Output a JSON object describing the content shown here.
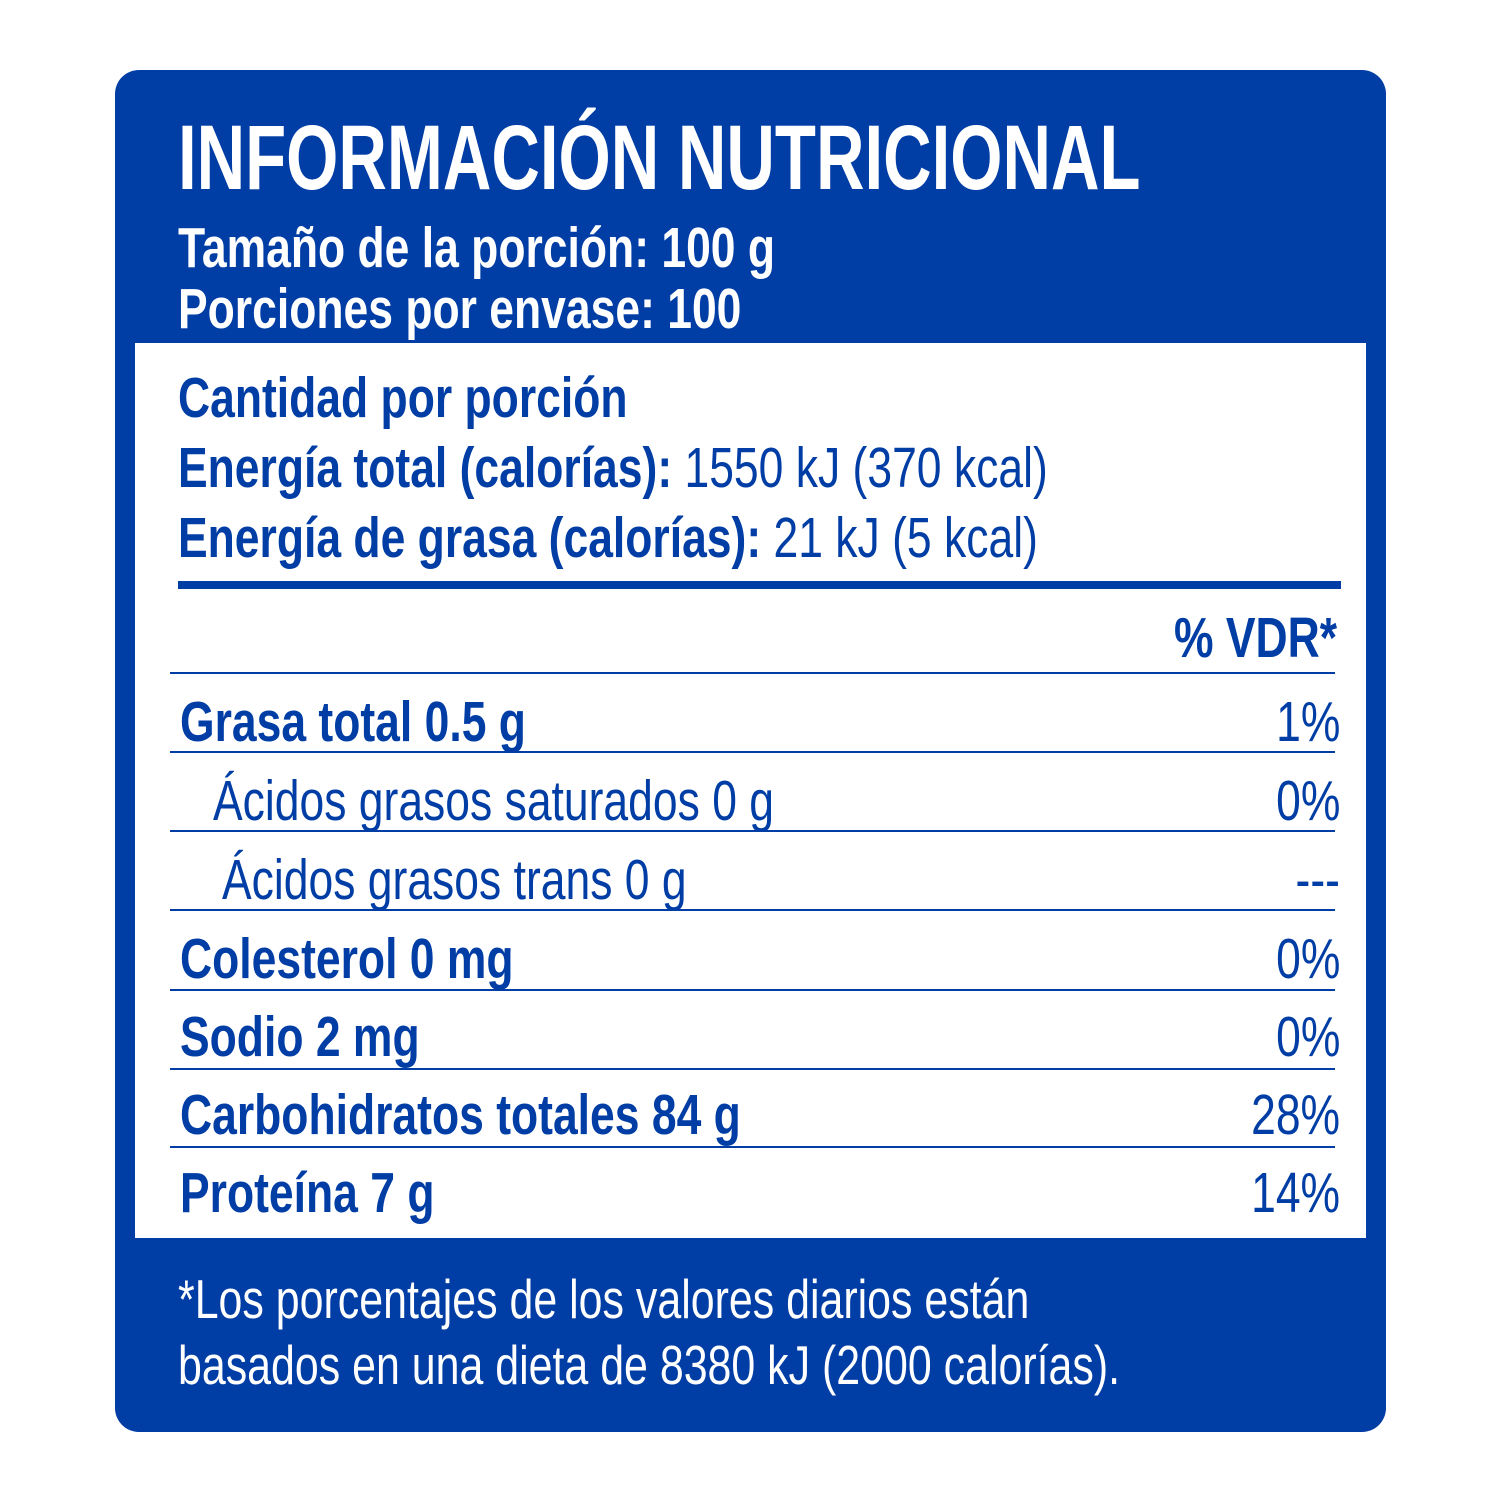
{
  "header": {
    "title": "INFORMACIÓN NUTRICIONAL",
    "serving_size": "Tamaño de la porción: 100 g",
    "servings_per_container": "Porciones por envase: 100"
  },
  "amount": {
    "heading": "Cantidad por porción",
    "energy_label": "Energía total (calorías):",
    "energy_value": " 1550 kJ (370 kcal)",
    "fat_energy_label": "Energía de grasa (calorías):",
    "fat_energy_value": " 21 kJ (5 kcal)"
  },
  "dv_header": "% VDR*",
  "rows": [
    {
      "label": "Grasa total 0.5 g",
      "dv": "1%"
    },
    {
      "label": "Ácidos grasos saturados 0 g",
      "dv": "0%"
    },
    {
      "label": "Ácidos grasos trans 0 g",
      "dv": "---"
    },
    {
      "label": "Colesterol 0 mg",
      "dv": "0%"
    },
    {
      "label": "Sodio 2 mg",
      "dv": "0%"
    },
    {
      "label": "Carbohidratos totales 84 g",
      "dv": "28%"
    },
    {
      "label": "Proteína 7 g",
      "dv": "14%"
    }
  ],
  "footnote": {
    "line1": "*Los porcentajes de los valores diarios están",
    "line2": "basados en una dieta de 8380 kJ (2000 calorías)."
  },
  "colors": {
    "brand_blue": "#003DA5",
    "panel": "#FFFFFF"
  }
}
